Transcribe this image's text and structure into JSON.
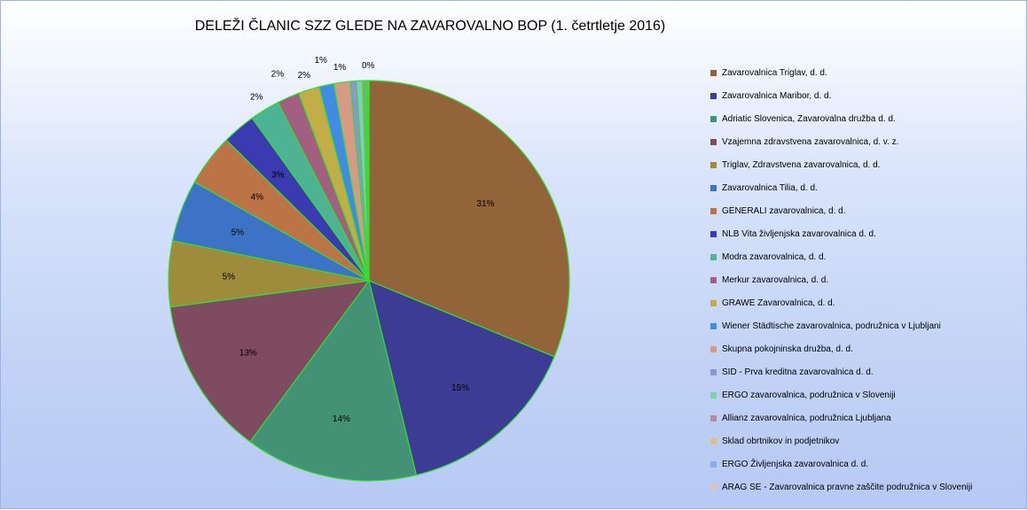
{
  "chart_data": {
    "type": "pie",
    "title": "DELEŽI ČLANIC SZZ GLEDE NA ZAVAROVALNO BOP (1. četrtletje 2016)",
    "categories": [
      "Zavarovalnica Triglav, d. d.",
      "Zavarovalnica Maribor, d. d.",
      "Adriatic Slovenica, Zavarovalna družba d. d.",
      "Vzajemna zdravstvena zavarovalnica, d. v. z.",
      "Triglav, Zdravstvena zavarovalnica, d. d.",
      "Zavarovalnica Tilia, d. d.",
      "GENERALI zavarovalnica, d. d.",
      "NLB Vita življenjska zavarovalnica d. d.",
      "Modra zavarovalnica, d. d.",
      "Merkur zavarovalnica, d. d.",
      "GRAWE Zavarovalnica, d. d.",
      "Wiener Städtische zavarovalnica, podružnica v Ljubljani",
      "Skupna pokojninska družba, d. d.",
      "SID - Prva kreditna zavarovalnica d. d.",
      "ERGO zavarovalnica, podružnica v Sloveniji",
      "Allianz zavarovalnica, podružnica Ljubljana",
      "Sklad obrtnikov in podjetnikov",
      "ERGO Življenjska zavarovalnica d. d.",
      "ARAG SE - Zavarovalnica pravne zaščite podružnica v Sloveniji"
    ],
    "values": [
      31.2,
      15.0,
      13.9,
      12.8,
      5.3,
      5.0,
      4.2,
      2.7,
      2.4,
      1.8,
      1.7,
      1.2,
      1.3,
      0.5,
      0.5,
      0.2,
      0.1,
      0.1,
      0.1
    ],
    "labels": [
      "31%",
      "15%",
      "14%",
      "13%",
      "5%",
      "5%",
      "4%",
      "3%",
      "2%",
      "2%",
      "2%",
      "1%",
      "1%",
      "",
      "",
      "",
      "",
      "",
      "0%"
    ],
    "colors": [
      "#93633a",
      "#3d3c95",
      "#439276",
      "#7e4b60",
      "#9f8b3c",
      "#3c73c6",
      "#bc7346",
      "#3b3ab0",
      "#4db393",
      "#a35f80",
      "#c3ad46",
      "#3f8be5",
      "#d69a85",
      "#8e94d8",
      "#85cdb0",
      "#b58aa3",
      "#d9c27e",
      "#8cabee",
      "#e1c1bb"
    ],
    "legend_position": "right",
    "slice_edge_color": "#33dd33"
  }
}
